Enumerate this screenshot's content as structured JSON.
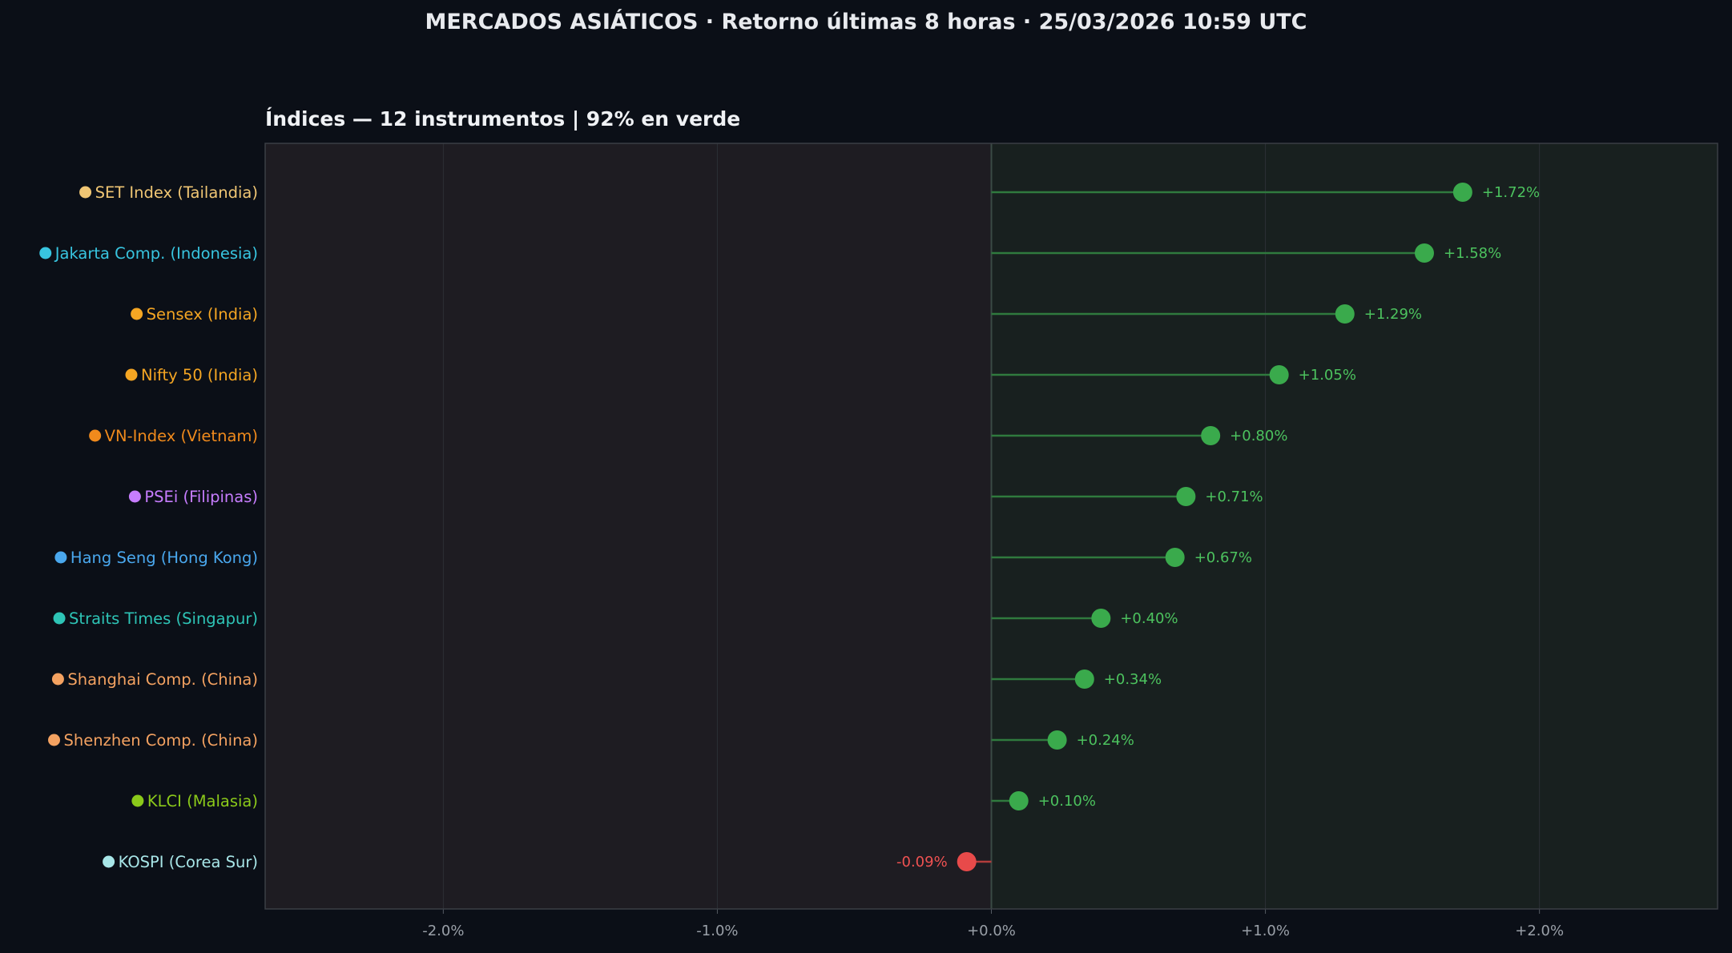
{
  "header": {
    "title": "MERCADOS ASIÁTICOS  ·  Retorno últimas 8 horas  ·  25/03/2026 10:59 UTC"
  },
  "panel": {
    "title": "Índices  —  12 instrumentos  |  92% en verde"
  },
  "colors": {
    "background": "#0b0f17",
    "negative_zone": "#1e1c22",
    "positive_zone": "#18201f",
    "positive": "#3aaa4c",
    "negative": "#e84a4a",
    "positive_text": "#4cc25e",
    "negative_text": "#f05252",
    "tick_text": "#9aa0a8"
  },
  "chart_data": {
    "type": "lollipop",
    "orientation": "horizontal",
    "title": "Índices  —  12 instrumentos  |  92% en verde",
    "xlim": [
      -2.65,
      2.65
    ],
    "x_ticks": [
      -2,
      -1,
      0,
      1,
      2
    ],
    "x_tick_labels": [
      "-2.0%",
      "-1.0%",
      "+0.0%",
      "+1.0%",
      "+2.0%"
    ],
    "grid": "vertical",
    "unit": "%",
    "series": [
      {
        "label": "SET Index  (Tailandia)",
        "value": 1.72,
        "value_label": "+1.72%",
        "marker_color": "#f0c674"
      },
      {
        "label": "Jakarta Comp.  (Indonesia)",
        "value": 1.58,
        "value_label": "+1.58%",
        "marker_color": "#38c5e0"
      },
      {
        "label": "Sensex  (India)",
        "value": 1.29,
        "value_label": "+1.29%",
        "marker_color": "#f5a623"
      },
      {
        "label": "Nifty 50  (India)",
        "value": 1.05,
        "value_label": "+1.05%",
        "marker_color": "#f5a623"
      },
      {
        "label": "VN-Index  (Vietnam)",
        "value": 0.8,
        "value_label": "+0.80%",
        "marker_color": "#f08a1c"
      },
      {
        "label": "PSEi  (Filipinas)",
        "value": 0.71,
        "value_label": "+0.71%",
        "marker_color": "#c77dff"
      },
      {
        "label": "Hang Seng  (Hong Kong)",
        "value": 0.67,
        "value_label": "+0.67%",
        "marker_color": "#4aa8ee"
      },
      {
        "label": "Straits Times  (Singapur)",
        "value": 0.4,
        "value_label": "+0.40%",
        "marker_color": "#2ec4b6"
      },
      {
        "label": "Shanghai Comp.  (China)",
        "value": 0.34,
        "value_label": "+0.34%",
        "marker_color": "#f4a261"
      },
      {
        "label": "Shenzhen Comp.  (China)",
        "value": 0.24,
        "value_label": "+0.24%",
        "marker_color": "#f4a261"
      },
      {
        "label": "KLCI  (Malasia)",
        "value": 0.1,
        "value_label": "+0.10%",
        "marker_color": "#8bc91a"
      },
      {
        "label": "KOSPI  (Corea Sur)",
        "value": -0.09,
        "value_label": "-0.09%",
        "marker_color": "#a8e6e8"
      }
    ]
  }
}
